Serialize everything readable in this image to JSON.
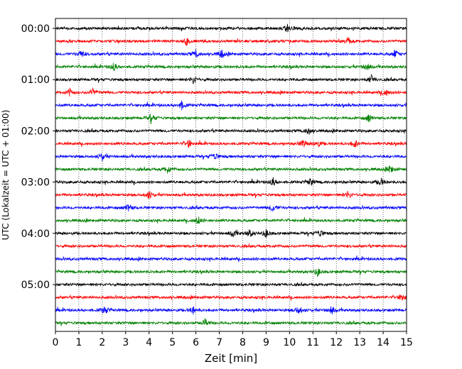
{
  "chart_data": {
    "type": "line",
    "chart_kind": "helicorder",
    "xlabel": "Zeit  [min]",
    "ylabel": "UTC (Lokalzeit = UTC + 01:00)",
    "xlim": [
      0,
      15
    ],
    "x_ticks": [
      "0",
      "1",
      "2",
      "3",
      "4",
      "5",
      "6",
      "7",
      "8",
      "9",
      "10",
      "11",
      "12",
      "13",
      "14",
      "15"
    ],
    "x_grid": "dotted vertical lines at each minute",
    "y_tick_labels": [
      "00:00",
      "01:00",
      "02:00",
      "03:00",
      "04:00",
      "05:00"
    ],
    "trace_interval_min": 15,
    "trace_count": 24,
    "trace_colors": [
      "#000000",
      "#ff0000",
      "#0000ff",
      "#008000"
    ],
    "traces": [
      {
        "start": "00:00",
        "color": "#000000",
        "events_min": [
          9.9
        ]
      },
      {
        "start": "00:15",
        "color": "#ff0000",
        "events_min": [
          5.6,
          12.5
        ]
      },
      {
        "start": "00:30",
        "color": "#0000ff",
        "events_min": [
          1.1,
          6.0,
          7.1,
          14.5
        ]
      },
      {
        "start": "00:45",
        "color": "#008000",
        "events_min": [
          2.5,
          13.3
        ]
      },
      {
        "start": "01:00",
        "color": "#000000",
        "events_min": [
          5.9,
          13.5
        ]
      },
      {
        "start": "01:15",
        "color": "#ff0000",
        "events_min": [
          0.6,
          1.6,
          14.1
        ]
      },
      {
        "start": "01:30",
        "color": "#0000ff",
        "events_min": [
          5.4
        ]
      },
      {
        "start": "01:45",
        "color": "#008000",
        "events_min": [
          4.1,
          13.4
        ]
      },
      {
        "start": "02:00",
        "color": "#000000",
        "events_min": [
          10.8
        ]
      },
      {
        "start": "02:15",
        "color": "#ff0000",
        "events_min": [
          5.7,
          10.6,
          11.2,
          12.8
        ]
      },
      {
        "start": "02:30",
        "color": "#0000ff",
        "events_min": [
          2.0,
          6.8
        ]
      },
      {
        "start": "02:45",
        "color": "#008000",
        "events_min": [
          4.8,
          14.3
        ]
      },
      {
        "start": "03:00",
        "color": "#000000",
        "events_min": [
          9.3,
          10.9,
          13.9
        ]
      },
      {
        "start": "03:15",
        "color": "#ff0000",
        "events_min": [
          4.0,
          12.5
        ]
      },
      {
        "start": "03:30",
        "color": "#0000ff",
        "events_min": [
          3.1,
          9.3
        ]
      },
      {
        "start": "03:45",
        "color": "#008000",
        "events_min": [
          6.1
        ]
      },
      {
        "start": "04:00",
        "color": "#000000",
        "events_min": [
          7.6,
          8.3,
          9.0,
          11.3
        ]
      },
      {
        "start": "04:15",
        "color": "#ff0000",
        "events_min": []
      },
      {
        "start": "04:30",
        "color": "#0000ff",
        "events_min": []
      },
      {
        "start": "04:45",
        "color": "#008000",
        "events_min": [
          11.2
        ]
      },
      {
        "start": "05:00",
        "color": "#000000",
        "events_min": []
      },
      {
        "start": "05:15",
        "color": "#ff0000",
        "events_min": [
          14.8
        ]
      },
      {
        "start": "05:30",
        "color": "#0000ff",
        "events_min": [
          2.1,
          5.9,
          10.4,
          11.8
        ]
      },
      {
        "start": "05:45",
        "color": "#008000",
        "events_min": [
          6.4
        ]
      }
    ]
  }
}
